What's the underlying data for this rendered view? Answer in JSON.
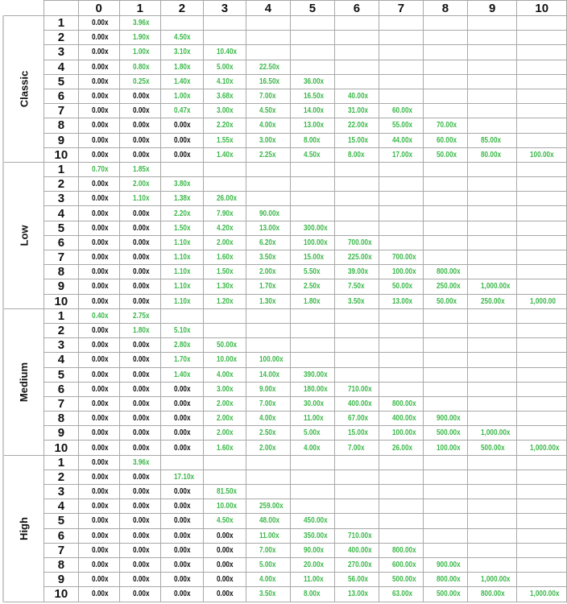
{
  "colors": {
    "zero": "#111111",
    "nonzero": "#3cb84a",
    "grid": "#a8a8a8"
  },
  "columns": [
    "0",
    "1",
    "2",
    "3",
    "4",
    "5",
    "6",
    "7",
    "8",
    "9",
    "10"
  ],
  "groups": [
    {
      "label": "Classic",
      "rows": [
        {
          "n": "1",
          "values": [
            "0.00x",
            "3.96x"
          ]
        },
        {
          "n": "2",
          "values": [
            "0.00x",
            "1.90x",
            "4.50x"
          ]
        },
        {
          "n": "3",
          "values": [
            "0.00x",
            "1.00x",
            "3.10x",
            "10.40x"
          ]
        },
        {
          "n": "4",
          "values": [
            "0.00x",
            "0.80x",
            "1.80x",
            "5.00x",
            "22.50x"
          ]
        },
        {
          "n": "5",
          "values": [
            "0.00x",
            "0.25x",
            "1.40x",
            "4.10x",
            "16.50x",
            "36.00x"
          ]
        },
        {
          "n": "6",
          "values": [
            "0.00x",
            "0.00x",
            "1.00x",
            "3.68x",
            "7.00x",
            "16.50x",
            "40.00x"
          ]
        },
        {
          "n": "7",
          "values": [
            "0.00x",
            "0.00x",
            "0.47x",
            "3.00x",
            "4.50x",
            "14.00x",
            "31.00x",
            "60.00x"
          ]
        },
        {
          "n": "8",
          "values": [
            "0.00x",
            "0.00x",
            "0.00x",
            "2.20x",
            "4.00x",
            "13.00x",
            "22.00x",
            "55.00x",
            "70.00x"
          ]
        },
        {
          "n": "9",
          "values": [
            "0.00x",
            "0.00x",
            "0.00x",
            "1.55x",
            "3.00x",
            "8.00x",
            "15.00x",
            "44.00x",
            "60.00x",
            "85.00x"
          ]
        },
        {
          "n": "10",
          "values": [
            "0.00x",
            "0.00x",
            "0.00x",
            "1.40x",
            "2.25x",
            "4.50x",
            "8.00x",
            "17.00x",
            "50.00x",
            "80.00x",
            "100.00x"
          ]
        }
      ]
    },
    {
      "label": "Low",
      "rows": [
        {
          "n": "1",
          "values": [
            "0.70x",
            "1.85x"
          ]
        },
        {
          "n": "2",
          "values": [
            "0.00x",
            "2.00x",
            "3.80x"
          ]
        },
        {
          "n": "3",
          "values": [
            "0.00x",
            "1.10x",
            "1.38x",
            "26.00x"
          ]
        },
        {
          "n": "4",
          "values": [
            "0.00x",
            "0.00x",
            "2.20x",
            "7.90x",
            "90.00x"
          ]
        },
        {
          "n": "5",
          "values": [
            "0.00x",
            "0.00x",
            "1.50x",
            "4.20x",
            "13.00x",
            "300.00x"
          ]
        },
        {
          "n": "6",
          "values": [
            "0.00x",
            "0.00x",
            "1.10x",
            "2.00x",
            "6.20x",
            "100.00x",
            "700.00x"
          ]
        },
        {
          "n": "7",
          "values": [
            "0.00x",
            "0.00x",
            "1.10x",
            "1.60x",
            "3.50x",
            "15.00x",
            "225.00x",
            "700.00x"
          ]
        },
        {
          "n": "8",
          "values": [
            "0.00x",
            "0.00x",
            "1.10x",
            "1.50x",
            "2.00x",
            "5.50x",
            "39.00x",
            "100.00x",
            "800.00x"
          ]
        },
        {
          "n": "9",
          "values": [
            "0.00x",
            "0.00x",
            "1.10x",
            "1.30x",
            "1.70x",
            "2.50x",
            "7.50x",
            "50.00x",
            "250.00x",
            "1,000.00x"
          ]
        },
        {
          "n": "10",
          "values": [
            "0.00x",
            "0.00x",
            "1.10x",
            "1.20x",
            "1.30x",
            "1.80x",
            "3.50x",
            "13.00x",
            "50.00x",
            "250.00x",
            "1,000.00"
          ]
        }
      ]
    },
    {
      "label": "Medium",
      "rows": [
        {
          "n": "1",
          "values": [
            "0.40x",
            "2.75x"
          ]
        },
        {
          "n": "2",
          "values": [
            "0.00x",
            "1.80x",
            "5.10x"
          ]
        },
        {
          "n": "3",
          "values": [
            "0.00x",
            "0.00x",
            "2.80x",
            "50.00x"
          ]
        },
        {
          "n": "4",
          "values": [
            "0.00x",
            "0.00x",
            "1.70x",
            "10.00x",
            "100.00x"
          ]
        },
        {
          "n": "5",
          "values": [
            "0.00x",
            "0.00x",
            "1.40x",
            "4.00x",
            "14.00x",
            "390.00x"
          ]
        },
        {
          "n": "6",
          "values": [
            "0.00x",
            "0.00x",
            "0.00x",
            "3.00x",
            "9.00x",
            "180.00x",
            "710.00x"
          ]
        },
        {
          "n": "7",
          "values": [
            "0.00x",
            "0.00x",
            "0.00x",
            "2.00x",
            "7.00x",
            "30.00x",
            "400.00x",
            "800.00x"
          ]
        },
        {
          "n": "8",
          "values": [
            "0.00x",
            "0.00x",
            "0.00x",
            "2.00x",
            "4.00x",
            "11.00x",
            "67.00x",
            "400.00x",
            "900.00x"
          ]
        },
        {
          "n": "9",
          "values": [
            "0.00x",
            "0.00x",
            "0.00x",
            "2.00x",
            "2.50x",
            "5.00x",
            "15.00x",
            "100.00x",
            "500.00x",
            "1,000.00x"
          ]
        },
        {
          "n": "10",
          "values": [
            "0.00x",
            "0.00x",
            "0.00x",
            "1.60x",
            "2.00x",
            "4.00x",
            "7.00x",
            "26.00x",
            "100.00x",
            "500.00x",
            "1,000.00x"
          ]
        }
      ]
    },
    {
      "label": "High",
      "rows": [
        {
          "n": "1",
          "values": [
            "0.00x",
            "3.96x"
          ]
        },
        {
          "n": "2",
          "values": [
            "0.00x",
            "0.00x",
            "17.10x"
          ]
        },
        {
          "n": "3",
          "values": [
            "0.00x",
            "0.00x",
            "0.00x",
            "81.50x"
          ]
        },
        {
          "n": "4",
          "values": [
            "0.00x",
            "0.00x",
            "0.00x",
            "10.00x",
            "259.00x"
          ]
        },
        {
          "n": "5",
          "values": [
            "0.00x",
            "0.00x",
            "0.00x",
            "4.50x",
            "48.00x",
            "450.00x"
          ]
        },
        {
          "n": "6",
          "values": [
            "0.00x",
            "0.00x",
            "0.00x",
            "0.00x",
            "11.00x",
            "350.00x",
            "710.00x"
          ]
        },
        {
          "n": "7",
          "values": [
            "0.00x",
            "0.00x",
            "0.00x",
            "0.00x",
            "7.00x",
            "90.00x",
            "400.00x",
            "800.00x"
          ]
        },
        {
          "n": "8",
          "values": [
            "0.00x",
            "0.00x",
            "0.00x",
            "0.00x",
            "5.00x",
            "20.00x",
            "270.00x",
            "600.00x",
            "900.00x"
          ]
        },
        {
          "n": "9",
          "values": [
            "0.00x",
            "0.00x",
            "0.00x",
            "0.00x",
            "4.00x",
            "11.00x",
            "56.00x",
            "500.00x",
            "800.00x",
            "1,000.00x"
          ]
        },
        {
          "n": "10",
          "values": [
            "0.00x",
            "0.00x",
            "0.00x",
            "0.00x",
            "3.50x",
            "8.00x",
            "13.00x",
            "63.00x",
            "500.00x",
            "800.00x",
            "1,000.00x"
          ]
        }
      ]
    }
  ]
}
